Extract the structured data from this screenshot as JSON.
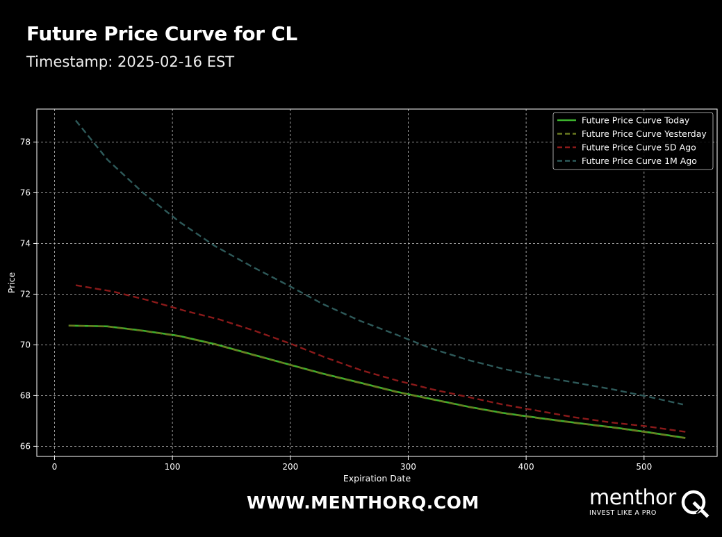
{
  "header": {
    "title": "Future Price Curve for CL",
    "subtitle": "Timestamp: 2025-02-16 EST"
  },
  "footer": {
    "website": "WWW.MENTHORQ.COM",
    "brand_name": "menthor",
    "brand_tagline": "INVEST LIKE A PRO"
  },
  "colors": {
    "background": "#000000",
    "grid": "#bfbfbf",
    "today": "#3cb32d",
    "yesterday": "#6b7a20",
    "fiveday": "#8b1a1a",
    "onemonth": "#2e5a5a"
  },
  "chart_data": {
    "type": "line",
    "title": "",
    "xlabel": "Expiration Date",
    "ylabel": "Price",
    "xlim": [
      -15,
      562
    ],
    "ylim": [
      65.6,
      79.3
    ],
    "xticks": [
      0,
      100,
      200,
      300,
      400,
      500
    ],
    "yticks": [
      66,
      68,
      70,
      72,
      74,
      76,
      78
    ],
    "grid": true,
    "legend_position": "top-right",
    "series": [
      {
        "name": "Future Price Curve Today",
        "style": "solid",
        "color_key": "today",
        "x": [
          12,
          45,
          75,
          106,
          136,
          167,
          198,
          228,
          259,
          290,
          320,
          351,
          381,
          412,
          443,
          473,
          504,
          535
        ],
        "y": [
          70.76,
          70.73,
          70.56,
          70.35,
          70.03,
          69.63,
          69.24,
          68.86,
          68.51,
          68.15,
          67.86,
          67.56,
          67.31,
          67.11,
          66.92,
          66.75,
          66.55,
          66.33
        ]
      },
      {
        "name": "Future Price Curve Yesterday",
        "style": "dashed",
        "color_key": "yesterday",
        "x": [
          12,
          45,
          75,
          106,
          136,
          167,
          198,
          228,
          259,
          290,
          320,
          351,
          381,
          412,
          443,
          473,
          504,
          535
        ],
        "y": [
          70.76,
          70.72,
          70.55,
          70.34,
          70.02,
          69.62,
          69.23,
          68.85,
          68.5,
          68.14,
          67.85,
          67.55,
          67.3,
          67.1,
          66.91,
          66.74,
          66.54,
          66.32
        ]
      },
      {
        "name": "Future Price Curve 5D Ago",
        "style": "dashed",
        "color_key": "fiveday",
        "x": [
          18,
          50,
          80,
          110,
          140,
          170,
          200,
          230,
          260,
          290,
          320,
          350,
          380,
          410,
          440,
          470,
          500,
          538
        ],
        "y": [
          72.35,
          72.1,
          71.75,
          71.35,
          71.0,
          70.55,
          70.05,
          69.5,
          69.0,
          68.6,
          68.25,
          67.95,
          67.65,
          67.4,
          67.15,
          66.95,
          66.8,
          66.55
        ]
      },
      {
        "name": "Future Price Curve 1M Ago",
        "style": "dashed",
        "color_key": "onemonth",
        "x": [
          18,
          45,
          75,
          106,
          136,
          167,
          198,
          228,
          259,
          290,
          320,
          351,
          381,
          412,
          443,
          473,
          504,
          533
        ],
        "y": [
          78.85,
          77.3,
          76.0,
          74.85,
          73.9,
          73.1,
          72.35,
          71.6,
          70.95,
          70.4,
          69.85,
          69.4,
          69.05,
          68.75,
          68.5,
          68.25,
          67.95,
          67.65
        ]
      }
    ]
  }
}
